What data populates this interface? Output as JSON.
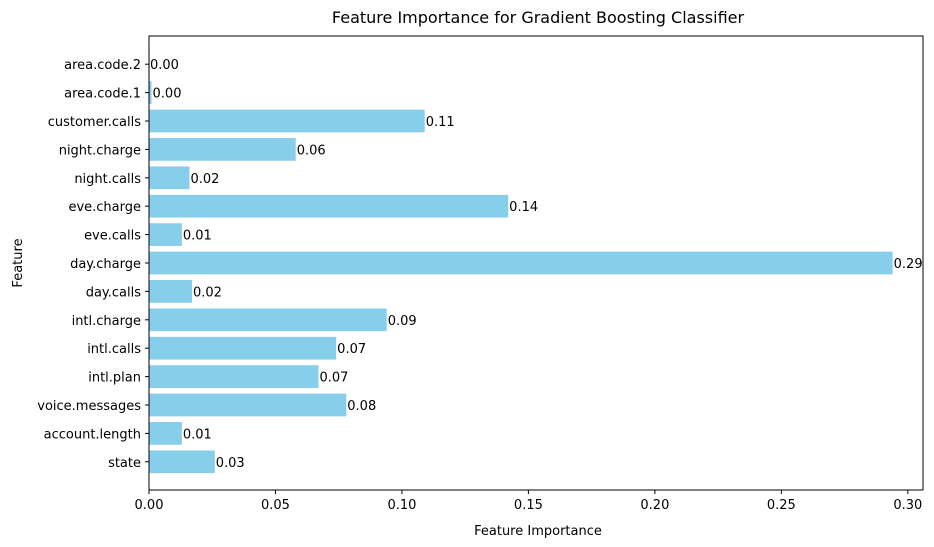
{
  "chart_data": {
    "type": "bar",
    "orientation": "horizontal",
    "title": "Feature Importance for Gradient Boosting Classifier",
    "xlabel": "Feature Importance",
    "ylabel": "Feature",
    "categories": [
      "state",
      "account.length",
      "voice.messages",
      "intl.plan",
      "intl.calls",
      "intl.charge",
      "day.calls",
      "day.charge",
      "eve.calls",
      "eve.charge",
      "night.calls",
      "night.charge",
      "customer.calls",
      "area.code.1",
      "area.code.2"
    ],
    "values": [
      0.026,
      0.013,
      0.078,
      0.067,
      0.074,
      0.094,
      0.017,
      0.294,
      0.013,
      0.142,
      0.016,
      0.058,
      0.109,
      0.001,
      0.0
    ],
    "data_labels": [
      "0.03",
      "0.01",
      "0.08",
      "0.07",
      "0.07",
      "0.09",
      "0.02",
      "0.29",
      "0.01",
      "0.14",
      "0.02",
      "0.06",
      "0.11",
      "0.00",
      "0.00"
    ],
    "xlim": [
      0,
      0.306
    ],
    "xticks": [
      0.0,
      0.05,
      0.1,
      0.15,
      0.2,
      0.25,
      0.3
    ],
    "xtick_labels": [
      "0.00",
      "0.05",
      "0.10",
      "0.15",
      "0.20",
      "0.25",
      "0.30"
    ],
    "bar_color": "#87ceeb",
    "grid": false,
    "legend": false
  }
}
